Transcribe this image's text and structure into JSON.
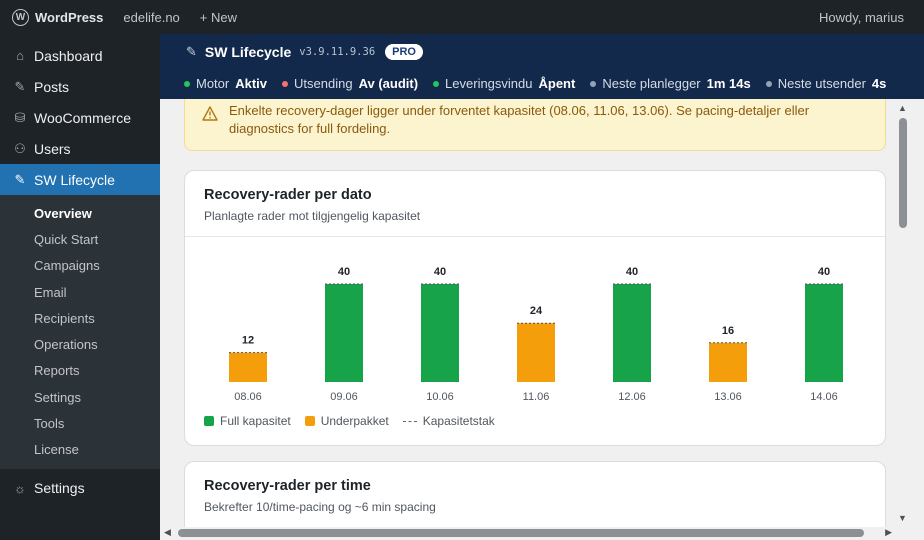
{
  "admin_bar": {
    "logo": "WordPress",
    "site": "edelife.no",
    "new": "+ New",
    "howdy": "Howdy, marius"
  },
  "sidebar": {
    "items": [
      {
        "label": "Dashboard",
        "icon": "dashboard-icon"
      },
      {
        "label": "Posts",
        "icon": "pin-icon"
      },
      {
        "label": "WooCommerce",
        "icon": "database-icon"
      },
      {
        "label": "Users",
        "icon": "users-icon"
      },
      {
        "label": "SW Lifecycle",
        "icon": "pencil-icon"
      }
    ],
    "submenu": [
      {
        "label": "Overview"
      },
      {
        "label": "Quick Start"
      },
      {
        "label": "Campaigns"
      },
      {
        "label": "Email"
      },
      {
        "label": "Recipients"
      },
      {
        "label": "Operations"
      },
      {
        "label": "Reports"
      },
      {
        "label": "Settings"
      },
      {
        "label": "Tools"
      },
      {
        "label": "License"
      }
    ],
    "settings": {
      "label": "Settings",
      "icon": "gear-icon"
    }
  },
  "plugin": {
    "title": "SW Lifecycle",
    "version": "v3.9.11.9.36",
    "badge": "PRO",
    "status": [
      {
        "label": "Motor",
        "value": "Aktiv",
        "color": "#22c55e"
      },
      {
        "label": "Utsending",
        "value": "Av (audit)",
        "color": "#f87171"
      },
      {
        "label": "Leveringsvindu",
        "value": "Åpent",
        "color": "#22c55e"
      },
      {
        "label": "Neste planlegger",
        "value": "1m 14s",
        "color": "#94a3b8"
      },
      {
        "label": "Neste utsender",
        "value": "4s",
        "color": "#94a3b8"
      }
    ]
  },
  "alert": {
    "line1": "Enkelte recovery-dager ligger under forventet kapasitet (08.06, 11.06, 13.06). Se pacing-detaljer eller",
    "line2": "diagnostics for full fordeling."
  },
  "card1": {
    "title": "Recovery-rader per dato",
    "subtitle": "Planlagte rader mot tilgjengelig kapasitet",
    "legend": [
      {
        "label": "Full kapasitet",
        "color": "#16a34a"
      },
      {
        "label": "Underpakket",
        "color": "#f59e0b"
      },
      {
        "label": "Kapasitetstak"
      }
    ]
  },
  "chart_data": {
    "type": "bar",
    "categories": [
      "08.06",
      "09.06",
      "10.06",
      "11.06",
      "12.06",
      "13.06",
      "14.06"
    ],
    "values": [
      12,
      40,
      40,
      24,
      40,
      16,
      40
    ],
    "status": [
      "under",
      "full",
      "full",
      "under",
      "full",
      "under",
      "full"
    ],
    "colors": {
      "full": "#16a34a",
      "under": "#f59e0b"
    },
    "capacity_marker": "dashed line at top of each bar",
    "grid": false
  },
  "card2": {
    "title": "Recovery-rader per time",
    "subtitle": "Bekrefter 10/time-pacing og ~6 min spacing"
  }
}
